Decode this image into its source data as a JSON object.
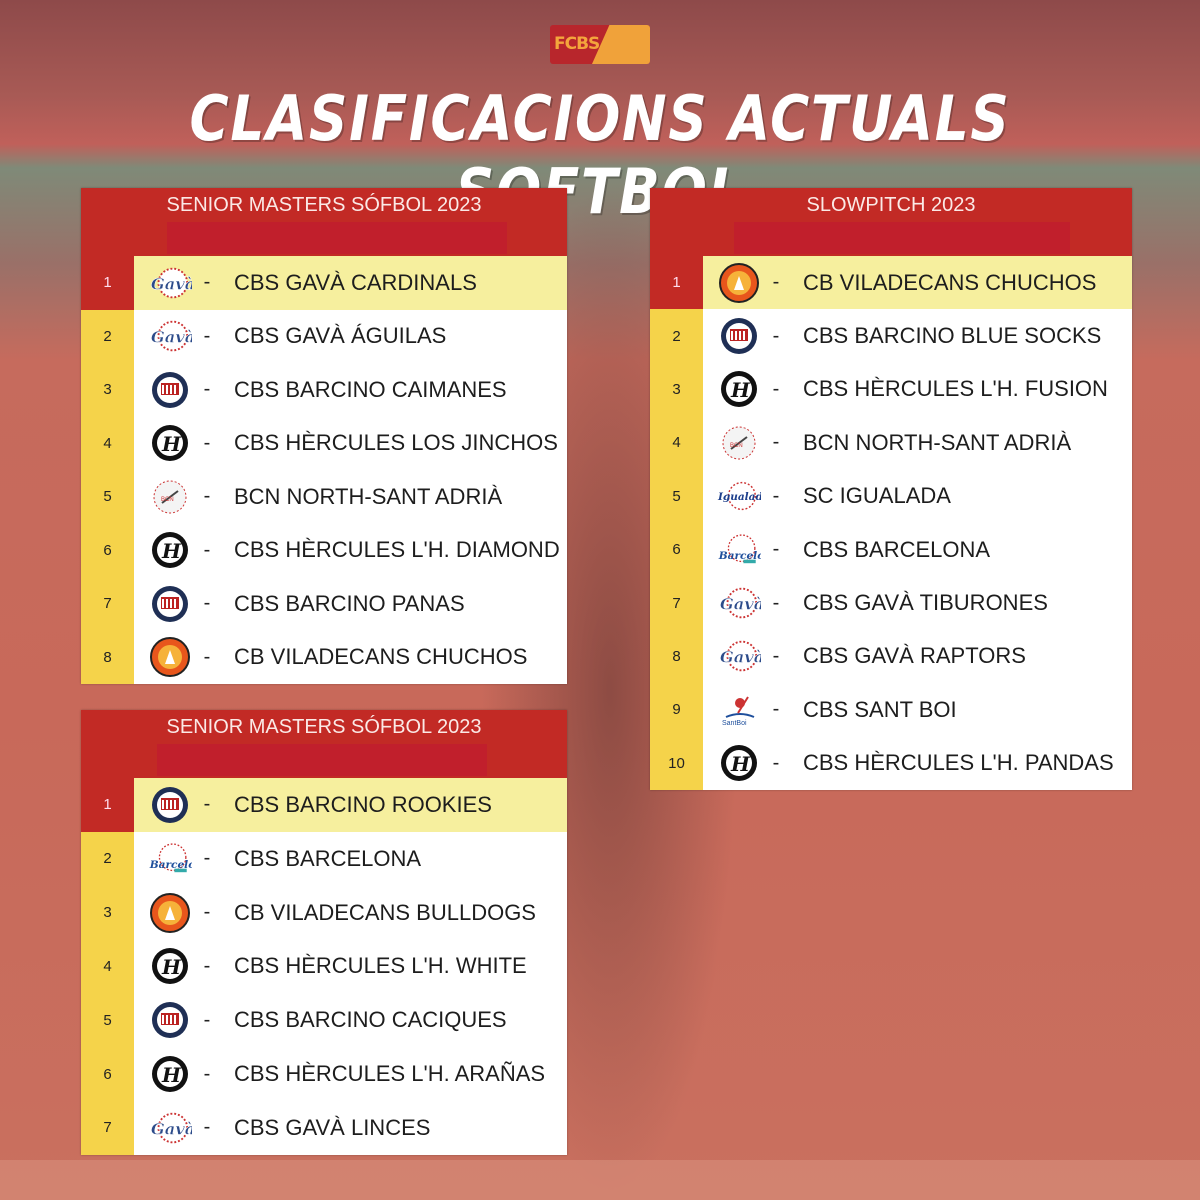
{
  "header": {
    "logo_text": "FCBS",
    "title": "CLASIFICACIONS ACTUALS SOFTBOL"
  },
  "colors": {
    "header_red": "#c22a25",
    "rank_yellow": "#f5d34a",
    "highlight_yellow": "#f6ef9e"
  },
  "tables": [
    {
      "title": "SENIOR MASTERS SÓFBOL 2023",
      "rows": [
        {
          "rank": "1",
          "logo": "gava-logo",
          "team": "CBS GAVÀ CARDINALS"
        },
        {
          "rank": "2",
          "logo": "gava-logo",
          "team": "CBS GAVÀ ÁGUILAS"
        },
        {
          "rank": "3",
          "logo": "barcino-logo",
          "team": "CBS BARCINO CAIMANES"
        },
        {
          "rank": "4",
          "logo": "hercules-logo",
          "team": "CBS HÈRCULES LOS JINCHOS"
        },
        {
          "rank": "5",
          "logo": "bcn-north-logo",
          "team": "BCN NORTH-SANT ADRIÀ"
        },
        {
          "rank": "6",
          "logo": "hercules-logo",
          "team": "CBS HÈRCULES L'H. DIAMOND"
        },
        {
          "rank": "7",
          "logo": "barcino-logo",
          "team": "CBS BARCINO PANAS"
        },
        {
          "rank": "8",
          "logo": "viladecans-logo",
          "team": "CB VILADECANS CHUCHOS"
        }
      ]
    },
    {
      "title": "SENIOR MASTERS SÓFBOL 2023",
      "rows": [
        {
          "rank": "1",
          "logo": "barcino-logo",
          "team": "CBS BARCINO ROOKIES"
        },
        {
          "rank": "2",
          "logo": "barcelona-logo",
          "team": "CBS BARCELONA"
        },
        {
          "rank": "3",
          "logo": "viladecans-logo",
          "team": "CB VILADECANS BULLDOGS"
        },
        {
          "rank": "4",
          "logo": "hercules-logo",
          "team": "CBS HÈRCULES L'H. WHITE"
        },
        {
          "rank": "5",
          "logo": "barcino-logo",
          "team": "CBS BARCINO CACIQUES"
        },
        {
          "rank": "6",
          "logo": "hercules-logo",
          "team": "CBS HÈRCULES L'H. ARAÑAS"
        },
        {
          "rank": "7",
          "logo": "gava-logo",
          "team": "CBS GAVÀ LINCES"
        }
      ]
    },
    {
      "title": "SLOWPITCH 2023",
      "rows": [
        {
          "rank": "1",
          "logo": "viladecans-logo",
          "team": "CB VILADECANS CHUCHOS"
        },
        {
          "rank": "2",
          "logo": "barcino-logo",
          "team": "CBS BARCINO BLUE SOCKS"
        },
        {
          "rank": "3",
          "logo": "hercules-logo",
          "team": "CBS HÈRCULES L'H. FUSION"
        },
        {
          "rank": "4",
          "logo": "bcn-north-logo",
          "team": "BCN NORTH-SANT ADRIÀ"
        },
        {
          "rank": "5",
          "logo": "igualada-logo",
          "team": "SC IGUALADA"
        },
        {
          "rank": "6",
          "logo": "barcelona-logo",
          "team": "CBS BARCELONA"
        },
        {
          "rank": "7",
          "logo": "gava-logo",
          "team": "CBS GAVÀ TIBURONES"
        },
        {
          "rank": "8",
          "logo": "gava-logo",
          "team": "CBS GAVÀ RAPTORS"
        },
        {
          "rank": "9",
          "logo": "santboi-logo",
          "team": "CBS SANT BOI"
        },
        {
          "rank": "10",
          "logo": "hercules-logo",
          "team": "CBS HÈRCULES L'H. PANDAS"
        }
      ]
    }
  ],
  "dash": "-"
}
